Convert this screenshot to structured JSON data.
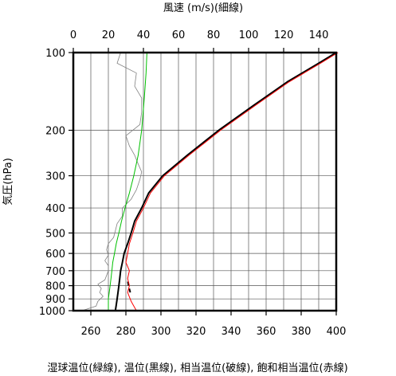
{
  "chart_data": {
    "type": "line",
    "top_axis": {
      "label": "風速 (m/s)(細線)",
      "range": [
        0,
        150
      ],
      "ticks": [
        0,
        20,
        40,
        60,
        80,
        100,
        120,
        140
      ]
    },
    "bottom_axis": {
      "label": "湿球温位(緑線), 温位(黒線), 相当温位(破線), 飽和相当温位(赤線)",
      "range": [
        250,
        400
      ],
      "ticks": [
        260,
        280,
        300,
        320,
        340,
        360,
        380,
        400
      ]
    },
    "y_axis": {
      "label": "気圧(hPa)",
      "scale": "log",
      "range": [
        1000,
        100
      ],
      "ticks": [
        100,
        200,
        300,
        400,
        500,
        600,
        700,
        800,
        900,
        1000
      ]
    },
    "grid": true,
    "series": [
      {
        "color": "#808080",
        "axis": "top",
        "style": "thin",
        "points": [
          [
            5,
            1000
          ],
          [
            13,
            960
          ],
          [
            14,
            920
          ],
          [
            17,
            880
          ],
          [
            15,
            850
          ],
          [
            16,
            820
          ],
          [
            14,
            790
          ],
          [
            18,
            760
          ],
          [
            19,
            730
          ],
          [
            20,
            700
          ],
          [
            20,
            670
          ],
          [
            18,
            640
          ],
          [
            20,
            610
          ],
          [
            19,
            580
          ],
          [
            20,
            550
          ],
          [
            23,
            520
          ],
          [
            24,
            490
          ],
          [
            25,
            460
          ],
          [
            28,
            430
          ],
          [
            28,
            400
          ],
          [
            33,
            370
          ],
          [
            36,
            340
          ],
          [
            38,
            310
          ],
          [
            39,
            290
          ],
          [
            37,
            270
          ],
          [
            35,
            250
          ],
          [
            32,
            230
          ],
          [
            30,
            210
          ],
          [
            38,
            190
          ],
          [
            39,
            170
          ],
          [
            39,
            150
          ],
          [
            35,
            135
          ],
          [
            36,
            120
          ],
          [
            25,
            110
          ],
          [
            27,
            100
          ]
        ]
      },
      {
        "color": "#00c000",
        "axis": "bottom",
        "style": "solid",
        "points": [
          [
            270,
            1000
          ],
          [
            270,
            950
          ],
          [
            270,
            900
          ],
          [
            270.5,
            850
          ],
          [
            271,
            800
          ],
          [
            271.5,
            750
          ],
          [
            272,
            700
          ],
          [
            272.5,
            650
          ],
          [
            273.5,
            600
          ],
          [
            274.5,
            550
          ],
          [
            276,
            500
          ],
          [
            277.5,
            450
          ],
          [
            279.5,
            400
          ],
          [
            282,
            350
          ],
          [
            284.5,
            300
          ],
          [
            287,
            250
          ],
          [
            289,
            200
          ],
          [
            290.5,
            150
          ],
          [
            291.5,
            120
          ],
          [
            292,
            100
          ]
        ]
      },
      {
        "color": "#000000",
        "axis": "bottom",
        "style": "thick",
        "points": [
          [
            274,
            1000
          ],
          [
            274.5,
            950
          ],
          [
            275,
            900
          ],
          [
            275.5,
            850
          ],
          [
            276,
            800
          ],
          [
            276.5,
            750
          ],
          [
            277,
            700
          ],
          [
            278,
            650
          ],
          [
            279,
            600
          ],
          [
            281,
            550
          ],
          [
            283,
            500
          ],
          [
            285,
            450
          ],
          [
            289,
            400
          ],
          [
            293,
            350
          ],
          [
            301,
            300
          ],
          [
            315,
            250
          ],
          [
            333,
            200
          ],
          [
            353,
            160
          ],
          [
            372,
            130
          ],
          [
            390,
            110
          ],
          [
            400,
            100
          ]
        ]
      },
      {
        "color": "#000000",
        "axis": "bottom",
        "style": "dashed",
        "points": [
          [
            282.5,
            850
          ],
          [
            281.5,
            800
          ],
          [
            281,
            760
          ]
        ]
      },
      {
        "color": "#ff0000",
        "axis": "bottom",
        "style": "solid",
        "points": [
          [
            286,
            1000
          ],
          [
            283,
            920
          ],
          [
            281,
            850
          ],
          [
            282,
            800
          ],
          [
            281,
            750
          ],
          [
            282,
            700
          ],
          [
            280,
            650
          ],
          [
            281,
            600
          ],
          [
            282,
            550
          ],
          [
            284,
            500
          ],
          [
            286,
            450
          ],
          [
            290,
            400
          ],
          [
            294,
            350
          ],
          [
            302,
            300
          ],
          [
            316,
            250
          ],
          [
            334,
            200
          ],
          [
            354,
            160
          ],
          [
            373,
            130
          ],
          [
            391,
            110
          ],
          [
            401,
            100
          ]
        ]
      }
    ]
  }
}
